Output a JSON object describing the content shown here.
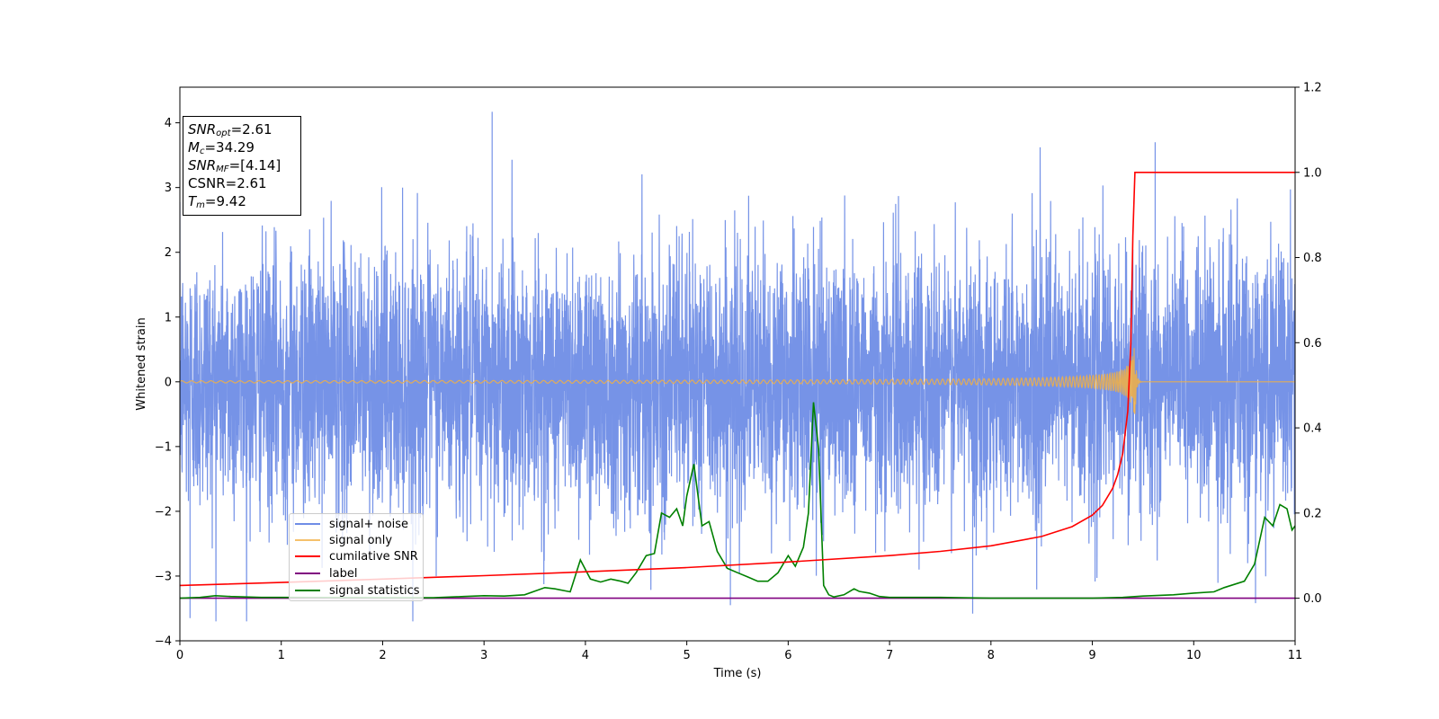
{
  "chart_data": {
    "type": "line",
    "xlabel": "Time (s)",
    "ylabel": "Whitened strain",
    "xlim": [
      0,
      11
    ],
    "ylim": [
      -4,
      4.55
    ],
    "y2lim": [
      -0.1,
      1.2
    ],
    "x_ticks": [
      0,
      1,
      2,
      3,
      4,
      5,
      6,
      7,
      8,
      9,
      10,
      11
    ],
    "y_ticks": [
      -4,
      -3,
      -2,
      -1,
      0,
      1,
      2,
      3,
      4
    ],
    "y_tick_labels": [
      "−4",
      "−3",
      "−2",
      "−1",
      "0",
      "1",
      "2",
      "3",
      "4"
    ],
    "y2_ticks": [
      0.0,
      0.2,
      0.4,
      0.6,
      0.8,
      1.0,
      1.2
    ],
    "y2_tick_labels": [
      "0.0",
      "0.2",
      "0.4",
      "0.6",
      "0.8",
      "1.0",
      "1.2"
    ],
    "grid": false,
    "legend_position": "lower-left",
    "stats_box": {
      "snr_opt": "=2.61",
      "mc": "=34.29",
      "snr_mf": "=[4.14]",
      "csnr": "CSNR=2.61",
      "tm": "=9.42"
    },
    "series": [
      {
        "name": "signal+ noise",
        "axis": "left",
        "color": "#6f8de6",
        "description_level": "noise amplitude ~ ±2.5 with spikes to ±4",
        "noise_std": 1.0,
        "peaks": [
          [
            3.08,
            4.17
          ],
          [
            0.1,
            -3.65
          ],
          [
            7.82,
            -3.58
          ],
          [
            9.62,
            3.7
          ],
          [
            5.43,
            -3.45
          ]
        ]
      },
      {
        "name": "signal only",
        "axis": "left",
        "color": "#f5b041",
        "merger_time": 9.42,
        "peak_amplitude": 0.65
      },
      {
        "name": "cumilative SNR",
        "axis": "right",
        "color": "#ff0000",
        "x": [
          0,
          1,
          2,
          3,
          4,
          5,
          6,
          7,
          7.5,
          8,
          8.5,
          8.8,
          9.0,
          9.1,
          9.2,
          9.25,
          9.3,
          9.35,
          9.38,
          9.4,
          9.42,
          10,
          11
        ],
        "y": [
          0.03,
          0.037,
          0.045,
          0.053,
          0.062,
          0.072,
          0.085,
          0.1,
          0.11,
          0.123,
          0.145,
          0.168,
          0.195,
          0.218,
          0.258,
          0.29,
          0.34,
          0.44,
          0.6,
          0.85,
          1.0,
          1.0,
          1.0
        ]
      },
      {
        "name": "label",
        "axis": "right",
        "color": "#800080",
        "x": [
          0,
          11
        ],
        "y": [
          0.0,
          0.0
        ]
      },
      {
        "name": "signal statistics",
        "axis": "right",
        "color": "#008000",
        "x": [
          0,
          0.2,
          0.35,
          0.5,
          0.8,
          1.0,
          2.0,
          2.5,
          2.8,
          3.0,
          3.2,
          3.4,
          3.6,
          3.7,
          3.85,
          3.95,
          4.05,
          4.15,
          4.25,
          4.35,
          4.42,
          4.5,
          4.6,
          4.68,
          4.75,
          4.83,
          4.9,
          4.96,
          5.0,
          5.07,
          5.15,
          5.22,
          5.3,
          5.4,
          5.5,
          5.6,
          5.7,
          5.8,
          5.9,
          6.0,
          6.07,
          6.15,
          6.2,
          6.25,
          6.3,
          6.35,
          6.4,
          6.45,
          6.55,
          6.65,
          6.7,
          6.8,
          6.9,
          7.0,
          7.5,
          8.0,
          8.5,
          9.0,
          9.3,
          9.5,
          9.8,
          10.0,
          10.2,
          10.3,
          10.5,
          10.6,
          10.7,
          10.78,
          10.85,
          10.92,
          10.97,
          11.0
        ],
        "y": [
          0.0,
          0.002,
          0.006,
          0.004,
          0.002,
          0.002,
          0.001,
          0.001,
          0.004,
          0.006,
          0.005,
          0.008,
          0.025,
          0.022,
          0.015,
          0.09,
          0.045,
          0.038,
          0.045,
          0.04,
          0.035,
          0.06,
          0.1,
          0.105,
          0.2,
          0.19,
          0.21,
          0.17,
          0.24,
          0.315,
          0.17,
          0.18,
          0.11,
          0.07,
          0.06,
          0.05,
          0.04,
          0.04,
          0.06,
          0.1,
          0.075,
          0.12,
          0.2,
          0.46,
          0.35,
          0.03,
          0.008,
          0.003,
          0.008,
          0.022,
          0.016,
          0.012,
          0.004,
          0.002,
          0.002,
          0.0,
          0.0,
          0.0,
          0.002,
          0.005,
          0.008,
          0.012,
          0.015,
          0.025,
          0.04,
          0.08,
          0.19,
          0.17,
          0.22,
          0.21,
          0.16,
          0.17
        ]
      }
    ]
  }
}
